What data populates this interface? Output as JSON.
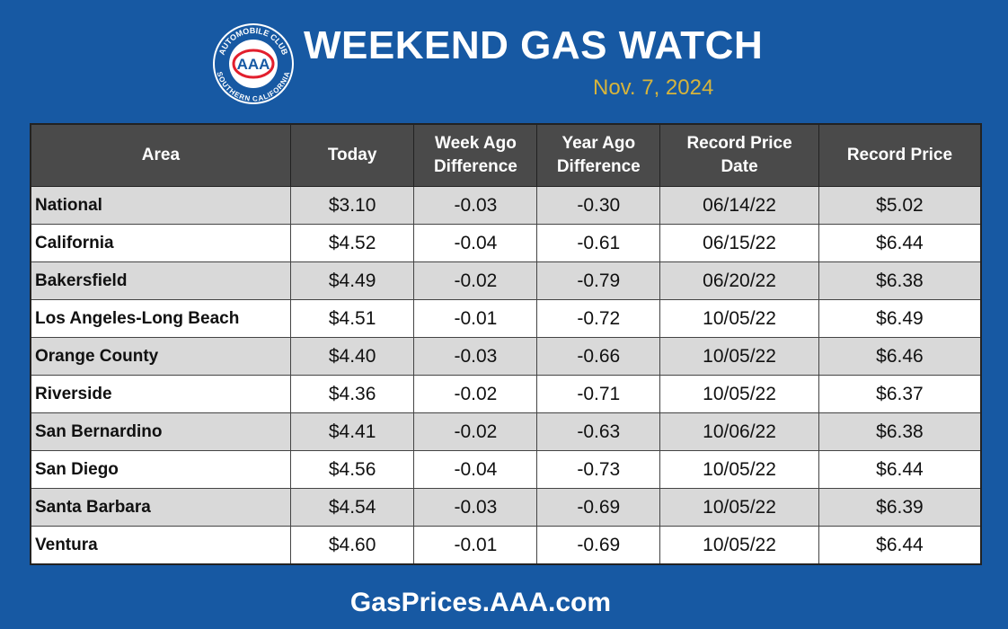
{
  "header": {
    "title": "WEEKEND GAS WATCH",
    "date": "Nov. 7, 2024"
  },
  "logo": {
    "top": "AUTOMOBILE CLUB",
    "center": "AAA",
    "bottom": "SOUTHERN CALIFORNIA"
  },
  "table": {
    "columns": [
      "Area",
      "Today",
      "Week Ago Difference",
      "Year Ago Difference",
      "Record Price Date",
      "Record Price"
    ],
    "rows": [
      [
        "National",
        "$3.10",
        "-0.03",
        "-0.30",
        "06/14/22",
        "$5.02"
      ],
      [
        "California",
        "$4.52",
        "-0.04",
        "-0.61",
        "06/15/22",
        "$6.44"
      ],
      [
        "Bakersfield",
        "$4.49",
        "-0.02",
        "-0.79",
        "06/20/22",
        "$6.38"
      ],
      [
        "Los Angeles-Long Beach",
        "$4.51",
        "-0.01",
        "-0.72",
        "10/05/22",
        "$6.49"
      ],
      [
        "Orange County",
        "$4.40",
        "-0.03",
        "-0.66",
        "10/05/22",
        "$6.46"
      ],
      [
        "Riverside",
        "$4.36",
        "-0.02",
        "-0.71",
        "10/05/22",
        "$6.37"
      ],
      [
        "San Bernardino",
        "$4.41",
        "-0.02",
        "-0.63",
        "10/06/22",
        "$6.38"
      ],
      [
        "San Diego",
        "$4.56",
        "-0.04",
        "-0.73",
        "10/05/22",
        "$6.44"
      ],
      [
        "Santa Barbara",
        "$4.54",
        "-0.03",
        "-0.69",
        "10/05/22",
        "$6.39"
      ],
      [
        "Ventura",
        "$4.60",
        "-0.01",
        "-0.69",
        "10/05/22",
        "$6.44"
      ]
    ]
  },
  "footer": {
    "url": "GasPrices.AAA.com"
  }
}
